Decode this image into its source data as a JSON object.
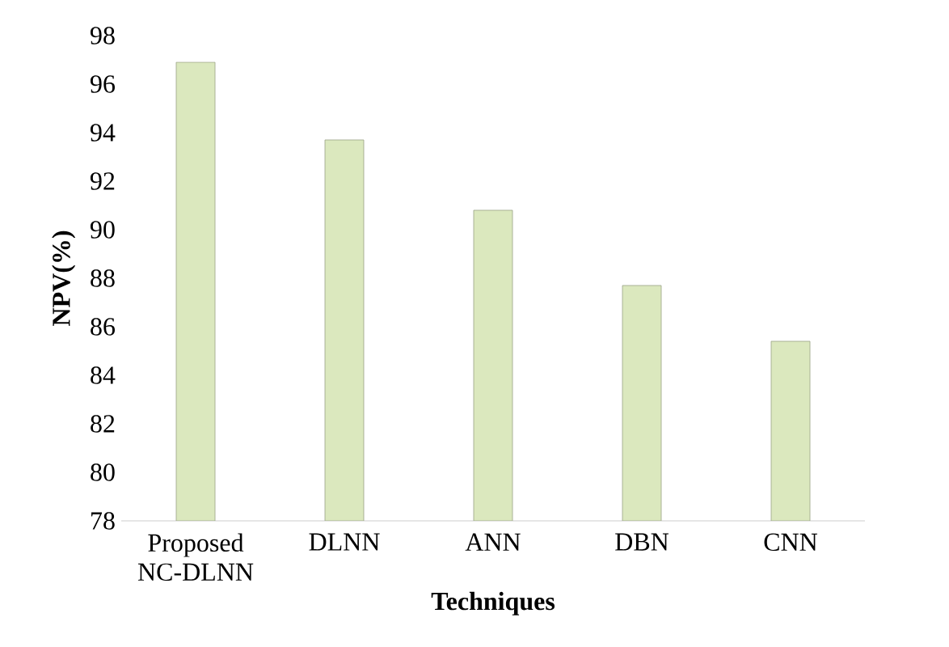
{
  "chart_data": {
    "type": "bar",
    "xlabel": "Techniques",
    "ylabel": "NPV(%)",
    "categories": [
      "Proposed NC-DLNN",
      "DLNN",
      "ANN",
      "DBN",
      "CNN"
    ],
    "values": [
      96.9,
      93.7,
      90.8,
      87.7,
      85.4
    ],
    "color": "#dbe8be",
    "ylim": [
      78,
      98
    ],
    "yticks": [
      78,
      80,
      82,
      84,
      86,
      88,
      90,
      92,
      94,
      96,
      98
    ],
    "grid": false
  }
}
